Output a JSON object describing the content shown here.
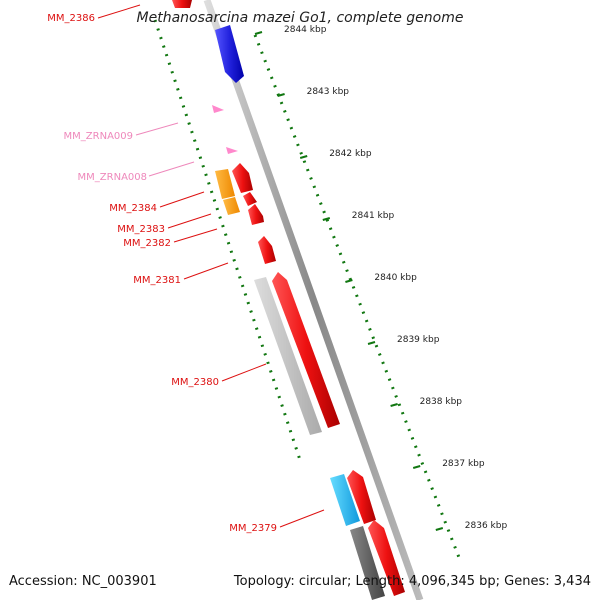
{
  "title": "Methanosarcina mazei Go1, complete genome",
  "accession": "Accession: NC_003901",
  "summary": "Topology: circular; Length: 4,096,345 bp; Genes: 3,434",
  "ticks": [
    "2844 kbp",
    "2843 kbp",
    "2842 kbp",
    "2841 kbp",
    "2840 kbp",
    "2839 kbp",
    "2838 kbp",
    "2837 kbp",
    "2836 kbp"
  ],
  "genes": [
    {
      "name": "MM_2386",
      "color": "#dd1111"
    },
    {
      "name": "MM_ZRNA009",
      "color": "#ee88bb"
    },
    {
      "name": "MM_ZRNA008",
      "color": "#ee88bb"
    },
    {
      "name": "MM_2384",
      "color": "#dd1111"
    },
    {
      "name": "MM_2383",
      "color": "#dd1111"
    },
    {
      "name": "MM_2382",
      "color": "#dd1111"
    },
    {
      "name": "MM_2381",
      "color": "#dd1111"
    },
    {
      "name": "MM_2380",
      "color": "#dd1111"
    },
    {
      "name": "MM_2379",
      "color": "#dd1111"
    }
  ],
  "colors": {
    "forward": "#ee1111",
    "reverse_blue": "#2222dd",
    "orange": "#ff9900",
    "cyan": "#22bbee",
    "grey": "#bbbbbb",
    "darkgrey": "#666666",
    "pink": "#ff88cc",
    "tick": "#117711"
  }
}
